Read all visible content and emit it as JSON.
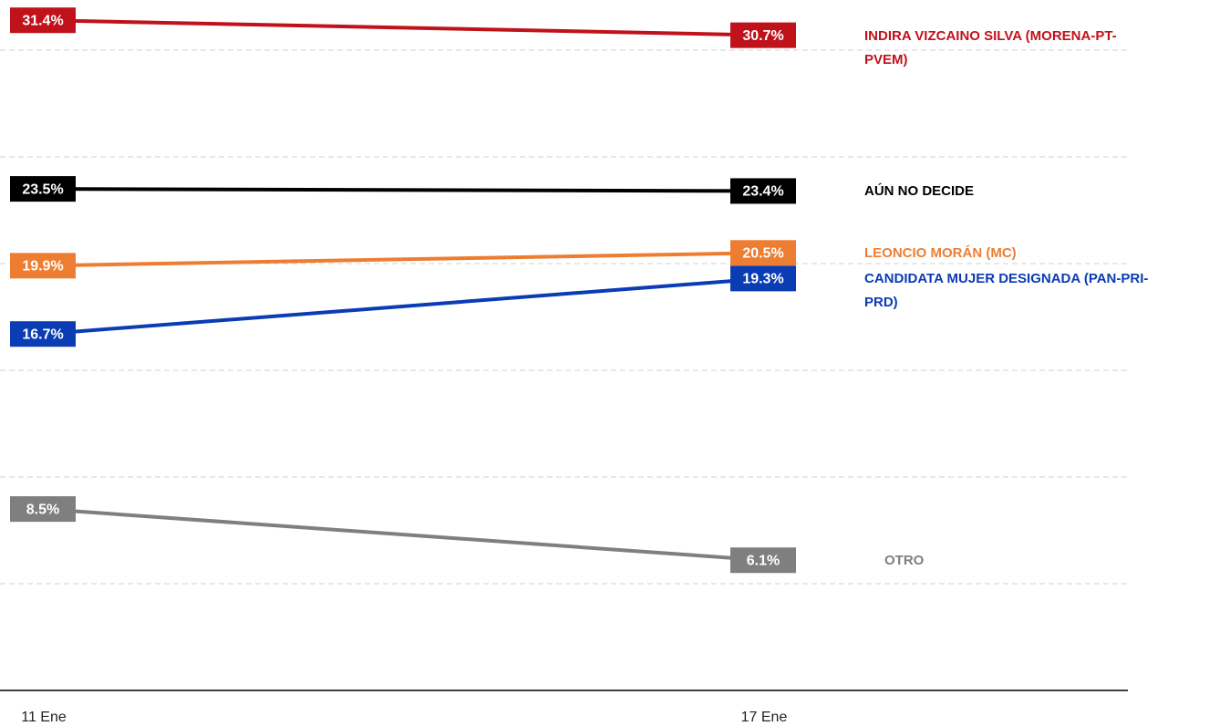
{
  "chart_data": {
    "type": "line",
    "categories": [
      "11 Ene",
      "17 Ene"
    ],
    "ylim": [
      0,
      32.35
    ],
    "yticks": [
      0,
      5,
      10,
      15,
      20,
      25,
      30
    ],
    "grid": true,
    "series": [
      {
        "name": "INDIRA VIZCAINO SILVA (MORENA-PT-PVEM)",
        "color": "#c0121b",
        "values": [
          31.4,
          30.7
        ],
        "value_labels": [
          "31.4%",
          "30.7%"
        ]
      },
      {
        "name": "AÚN NO DECIDE",
        "color": "#000000",
        "values": [
          23.5,
          23.4
        ],
        "value_labels": [
          "23.5%",
          "23.4%"
        ]
      },
      {
        "name": "LEONCIO MORÁN (MC)",
        "color": "#ed7d31",
        "values": [
          19.9,
          20.5
        ],
        "value_labels": [
          "19.9%",
          "20.5%"
        ]
      },
      {
        "name": "CANDIDATA MUJER DESIGNADA (PAN-PRI-PRD)",
        "color": "#0a3cb4",
        "values": [
          16.7,
          19.3
        ],
        "value_labels": [
          "16.7%",
          "19.3%"
        ]
      },
      {
        "name": "OTRO",
        "color": "#7f7f7f",
        "values": [
          8.5,
          6.1
        ],
        "value_labels": [
          "8.5%",
          "6.1%"
        ]
      }
    ]
  }
}
